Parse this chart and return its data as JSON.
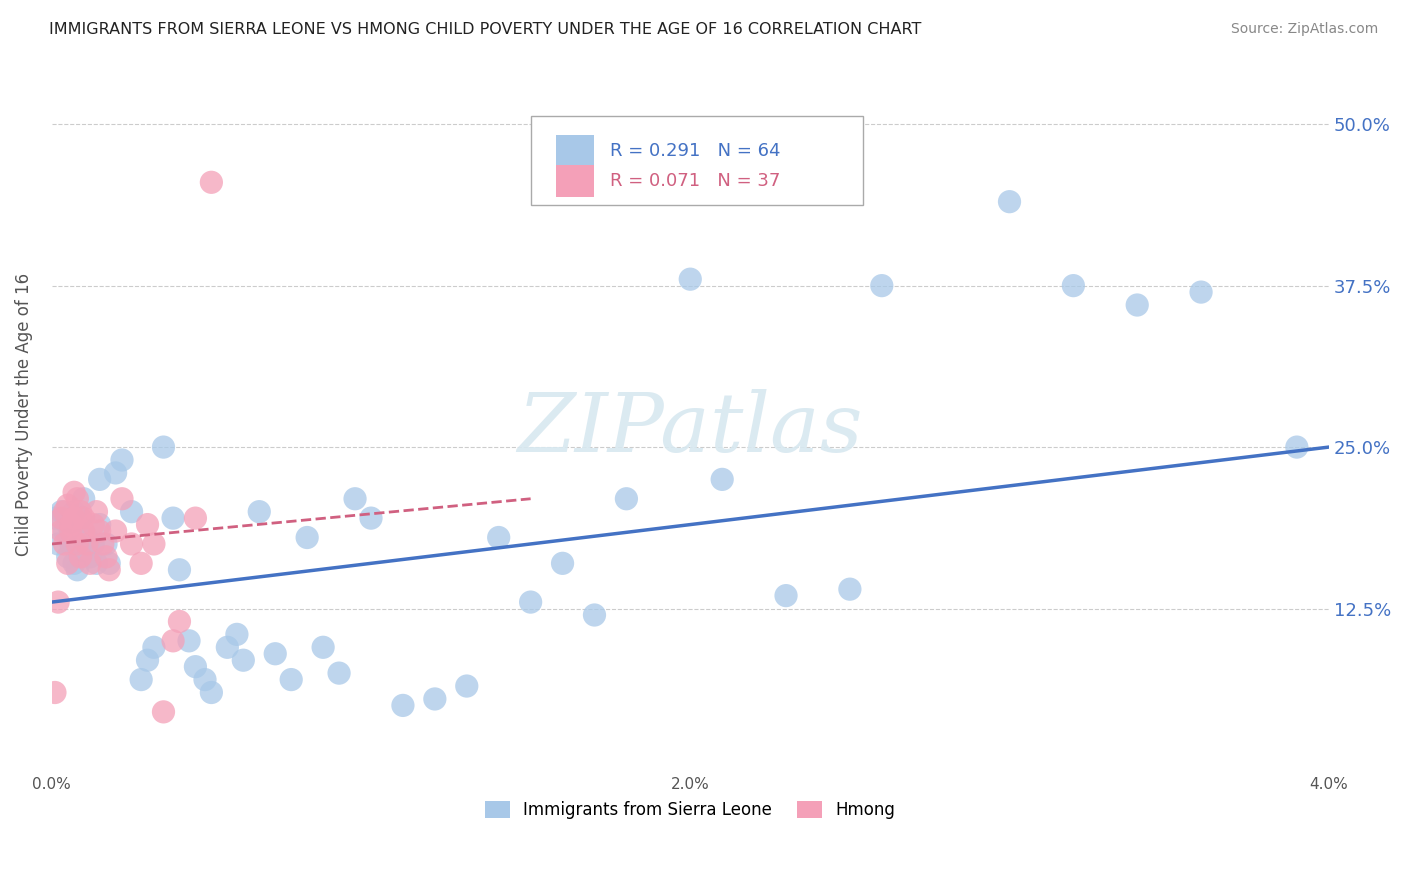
{
  "title": "IMMIGRANTS FROM SIERRA LEONE VS HMONG CHILD POVERTY UNDER THE AGE OF 16 CORRELATION CHART",
  "source": "Source: ZipAtlas.com",
  "ylabel": "Child Poverty Under the Age of 16",
  "legend_label_blue": "Immigrants from Sierra Leone",
  "legend_label_pink": "Hmong",
  "R_blue": 0.291,
  "N_blue": 64,
  "R_pink": 0.071,
  "N_pink": 37,
  "x_min": 0.0,
  "x_max": 0.04,
  "y_min": 0.0,
  "y_max": 0.55,
  "y_ticks": [
    0.0,
    0.125,
    0.25,
    0.375,
    0.5
  ],
  "y_tick_labels": [
    "",
    "12.5%",
    "25.0%",
    "37.5%",
    "50.0%"
  ],
  "x_ticks": [
    0.0,
    0.01,
    0.02,
    0.03,
    0.04
  ],
  "x_tick_labels": [
    "0.0%",
    "",
    "2.0%",
    "",
    "4.0%"
  ],
  "color_blue": "#a8c8e8",
  "color_blue_line": "#4472c4",
  "color_pink": "#f4a0b8",
  "color_pink_line": "#d06080",
  "background_color": "#ffffff",
  "grid_color": "#cccccc",
  "watermark_text": "ZIPatlas",
  "blue_line_x0": 0.0,
  "blue_line_x1": 0.04,
  "blue_line_y0": 0.13,
  "blue_line_y1": 0.25,
  "pink_line_x0": 0.0,
  "pink_line_x1": 0.015,
  "pink_line_y0": 0.175,
  "pink_line_y1": 0.21,
  "blue_scatter_x": [
    0.0001,
    0.0002,
    0.0003,
    0.0004,
    0.0005,
    0.0005,
    0.0006,
    0.0007,
    0.0007,
    0.0008,
    0.0008,
    0.0009,
    0.001,
    0.001,
    0.0011,
    0.0012,
    0.0013,
    0.0014,
    0.0015,
    0.0015,
    0.0017,
    0.0018,
    0.002,
    0.0022,
    0.0025,
    0.0028,
    0.003,
    0.0032,
    0.0035,
    0.0038,
    0.004,
    0.0043,
    0.0045,
    0.0048,
    0.005,
    0.0055,
    0.0058,
    0.006,
    0.0065,
    0.007,
    0.0075,
    0.008,
    0.0085,
    0.009,
    0.0095,
    0.01,
    0.011,
    0.012,
    0.013,
    0.014,
    0.015,
    0.016,
    0.017,
    0.018,
    0.02,
    0.021,
    0.023,
    0.025,
    0.026,
    0.03,
    0.032,
    0.034,
    0.036,
    0.039
  ],
  "blue_scatter_y": [
    0.195,
    0.175,
    0.2,
    0.185,
    0.19,
    0.165,
    0.175,
    0.16,
    0.2,
    0.185,
    0.155,
    0.195,
    0.17,
    0.21,
    0.18,
    0.165,
    0.175,
    0.16,
    0.19,
    0.225,
    0.175,
    0.16,
    0.23,
    0.24,
    0.2,
    0.07,
    0.085,
    0.095,
    0.25,
    0.195,
    0.155,
    0.1,
    0.08,
    0.07,
    0.06,
    0.095,
    0.105,
    0.085,
    0.2,
    0.09,
    0.07,
    0.18,
    0.095,
    0.075,
    0.21,
    0.195,
    0.05,
    0.055,
    0.065,
    0.18,
    0.13,
    0.16,
    0.12,
    0.21,
    0.38,
    0.225,
    0.135,
    0.14,
    0.375,
    0.44,
    0.375,
    0.36,
    0.37,
    0.25
  ],
  "pink_scatter_x": [
    0.0001,
    0.0002,
    0.0003,
    0.0003,
    0.0004,
    0.0004,
    0.0005,
    0.0005,
    0.0006,
    0.0006,
    0.0007,
    0.0007,
    0.0008,
    0.0008,
    0.0009,
    0.0009,
    0.001,
    0.001,
    0.0011,
    0.0012,
    0.0013,
    0.0014,
    0.0015,
    0.0016,
    0.0017,
    0.0018,
    0.002,
    0.0022,
    0.0025,
    0.0028,
    0.003,
    0.0032,
    0.0035,
    0.0038,
    0.004,
    0.0045,
    0.005
  ],
  "pink_scatter_y": [
    0.06,
    0.13,
    0.195,
    0.185,
    0.2,
    0.175,
    0.205,
    0.16,
    0.19,
    0.185,
    0.215,
    0.195,
    0.21,
    0.175,
    0.2,
    0.165,
    0.195,
    0.185,
    0.175,
    0.16,
    0.19,
    0.2,
    0.185,
    0.175,
    0.165,
    0.155,
    0.185,
    0.21,
    0.175,
    0.16,
    0.19,
    0.175,
    0.045,
    0.1,
    0.115,
    0.195,
    0.455
  ]
}
